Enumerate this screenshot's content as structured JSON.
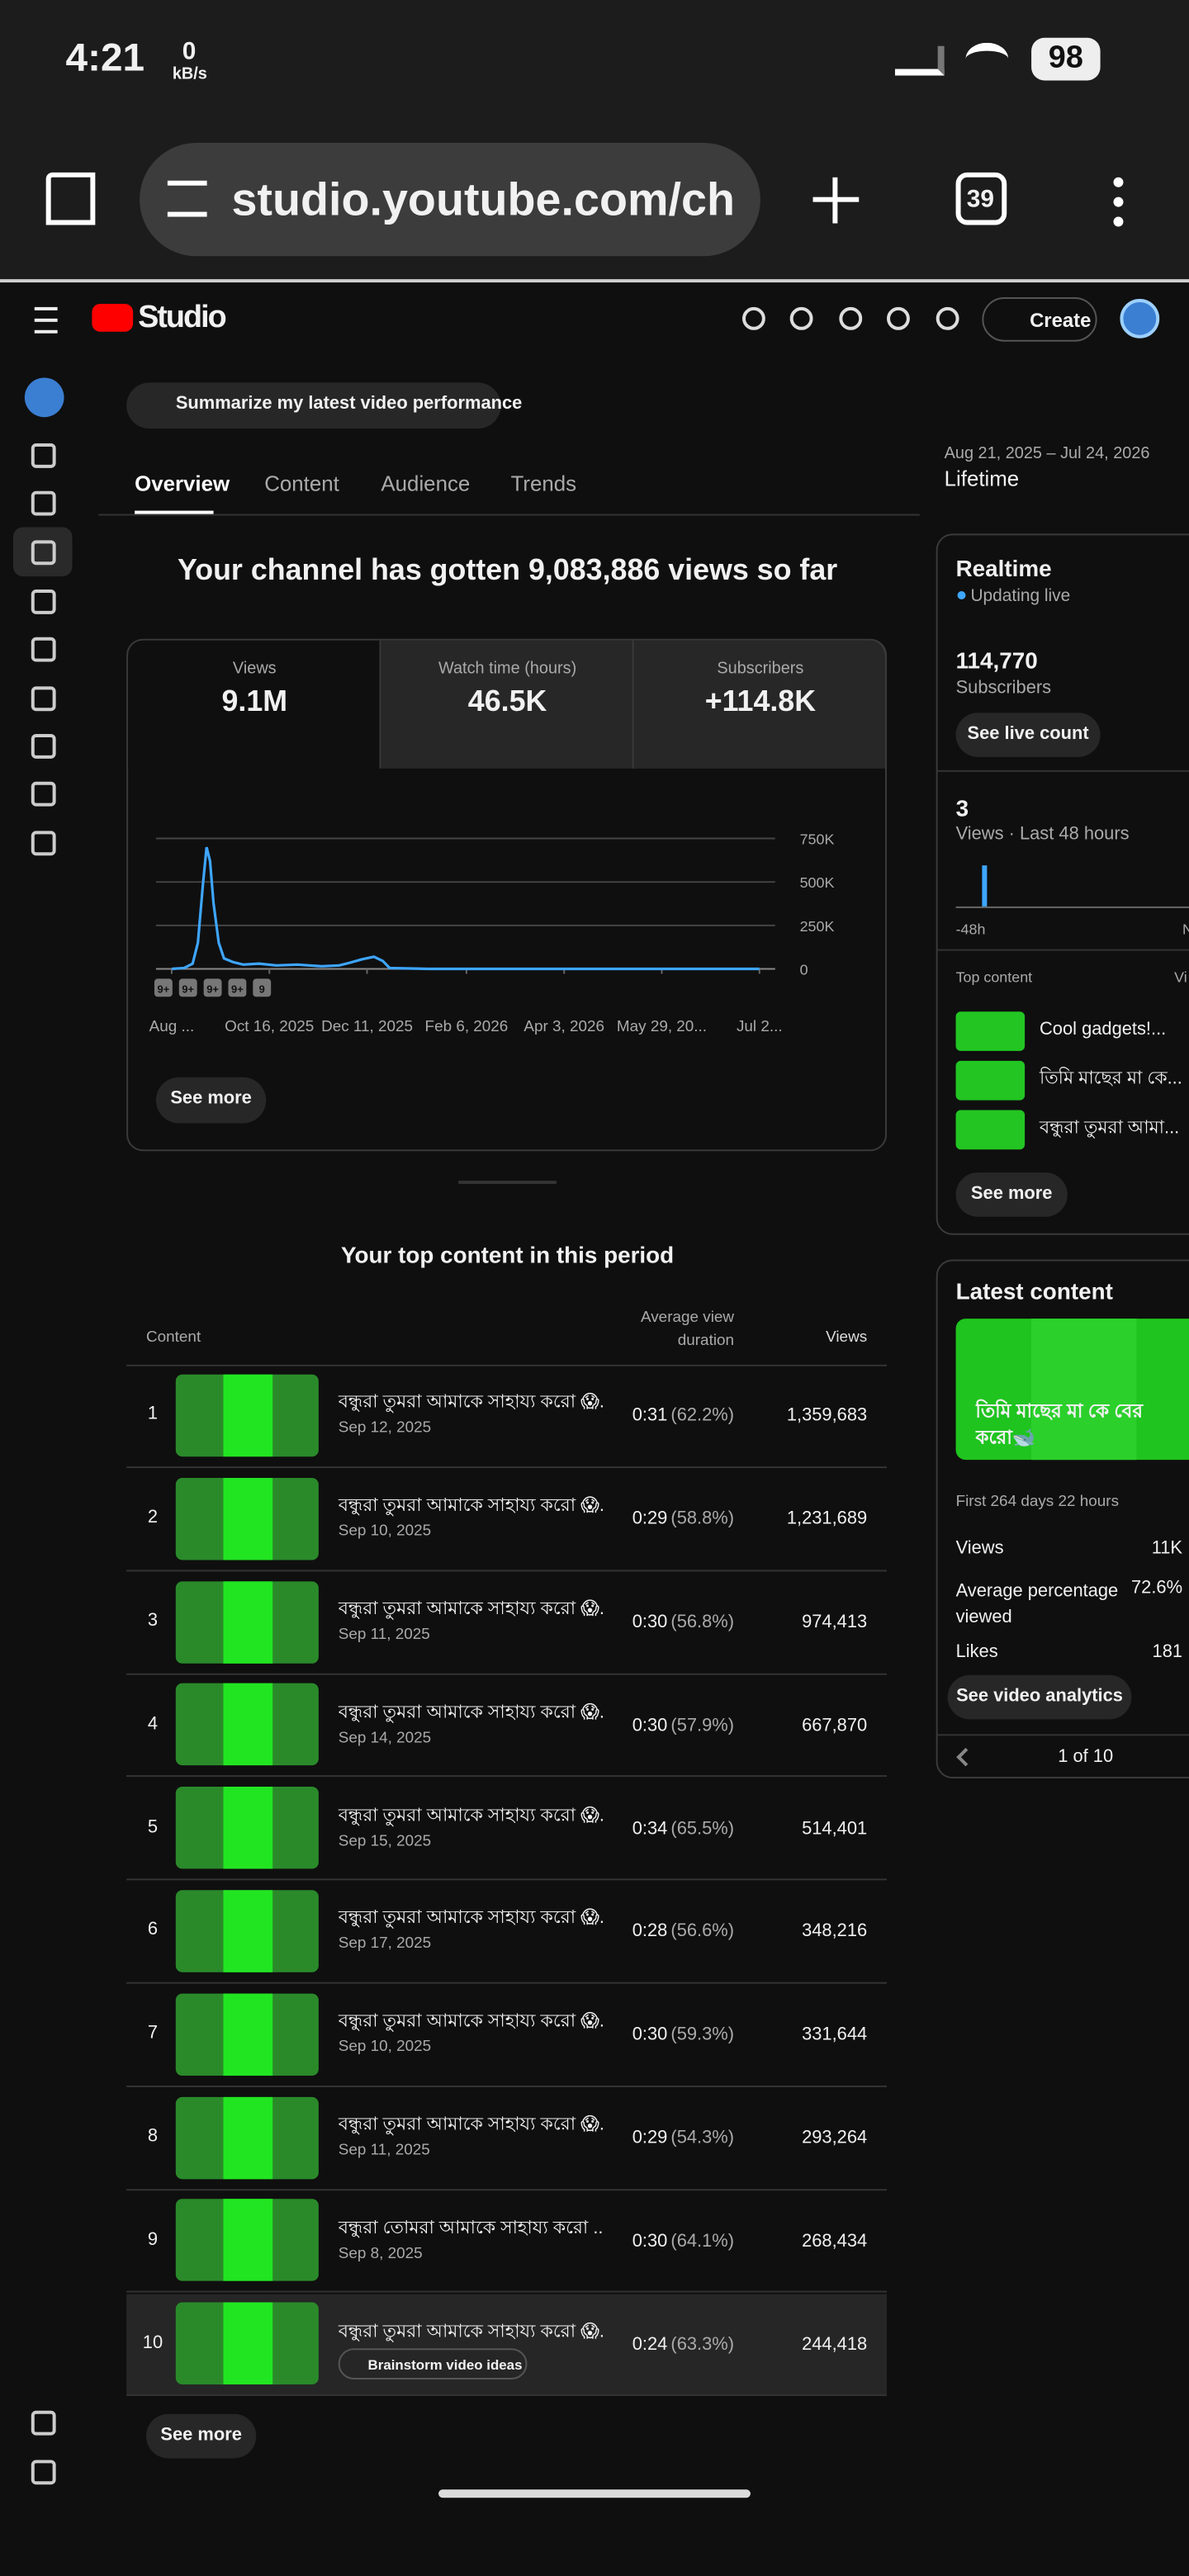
{
  "status": {
    "time": "4:21",
    "net": "0",
    "net_unit": "kB/s",
    "battery": "98"
  },
  "browser": {
    "url": "studio.youtube.com/ch",
    "tab_count": "39"
  },
  "header": {
    "logo": "Studio",
    "create": "Create"
  },
  "prompt": "Summarize my latest video performance",
  "tabs": [
    "Overview",
    "Content",
    "Audience",
    "Trends"
  ],
  "date_range": "Aug 21, 2025 – Jul 24, 2026",
  "period": "Lifetime",
  "headline": "Your channel has gotten 9,083,886 views so far",
  "metrics": [
    {
      "label": "Views",
      "value": "9.1M"
    },
    {
      "label": "Watch time (hours)",
      "value": "46.5K"
    },
    {
      "label": "Subscribers",
      "value": "+114.8K"
    }
  ],
  "chart_data": {
    "type": "line",
    "color": "#3ea6ff",
    "x": [
      "2025-08-21",
      "2025-08-28",
      "2025-09-02",
      "2025-09-05",
      "2025-09-08",
      "2025-09-10",
      "2025-09-12",
      "2025-09-14",
      "2025-09-17",
      "2025-09-20",
      "2025-09-25",
      "2025-10-01",
      "2025-10-10",
      "2025-10-20",
      "2025-11-01",
      "2025-11-15",
      "2025-11-25",
      "2025-12-01",
      "2025-12-08",
      "2025-12-15",
      "2025-12-20",
      "2025-12-24",
      "2026-01-15",
      "2026-03-01",
      "2026-05-01",
      "2026-07-24"
    ],
    "values": [
      0,
      5000,
      30000,
      150000,
      500000,
      700000,
      620000,
      380000,
      150000,
      60000,
      40000,
      25000,
      30000,
      20000,
      25000,
      15000,
      20000,
      35000,
      55000,
      70000,
      45000,
      5000,
      0,
      0,
      0,
      0
    ],
    "xlim": [
      "2025-08-12",
      "2026-08-02"
    ],
    "xticks": [
      {
        "value": "2025-08-21",
        "label": "Aug ..."
      },
      {
        "value": "2025-10-16",
        "label": "Oct 16, 2025"
      },
      {
        "value": "2025-12-11",
        "label": "Dec 11, 2025"
      },
      {
        "value": "2026-02-06",
        "label": "Feb 6, 2026"
      },
      {
        "value": "2026-04-03",
        "label": "Apr 3, 2026"
      },
      {
        "value": "2026-05-29",
        "label": "May 29, 20..."
      },
      {
        "value": "2026-07-24",
        "label": "Jul 2..."
      }
    ],
    "ylim": [
      0,
      850000
    ],
    "yticks": [
      0,
      {
        "value": 250000,
        "label": "250K"
      },
      {
        "value": 500000,
        "label": "500K"
      },
      {
        "value": 750000,
        "label": "750K"
      }
    ],
    "grid": true,
    "annotations": [
      "9+",
      "9+",
      "9+",
      "9+",
      "9"
    ]
  },
  "chart_see_more": "See more",
  "top_content": {
    "title": "Your top content in this period",
    "headers": [
      "Content",
      "Average view duration",
      "Views"
    ],
    "rows": [
      {
        "rank": "1",
        "title": "বন্ধুরা তুমরা আমাকে সাহায্য করো 😱...",
        "date": "Sep 12, 2025",
        "duration": "0:31",
        "percent": "(62.2%)",
        "views": "1,359,683"
      },
      {
        "rank": "2",
        "title": "বন্ধুরা তুমরা আমাকে সাহায্য করো 😱...",
        "date": "Sep 10, 2025",
        "duration": "0:29",
        "percent": "(58.8%)",
        "views": "1,231,689"
      },
      {
        "rank": "3",
        "title": "বন্ধুরা তুমরা আমাকে সাহায্য করো 😱...",
        "date": "Sep 11, 2025",
        "duration": "0:30",
        "percent": "(56.8%)",
        "views": "974,413"
      },
      {
        "rank": "4",
        "title": "বন্ধুরা তুমরা আমাকে সাহায্য করো 😱...",
        "date": "Sep 14, 2025",
        "duration": "0:30",
        "percent": "(57.9%)",
        "views": "667,870"
      },
      {
        "rank": "5",
        "title": "বন্ধুরা তুমরা আমাকে সাহায্য করো 😱...",
        "date": "Sep 15, 2025",
        "duration": "0:34",
        "percent": "(65.5%)",
        "views": "514,401"
      },
      {
        "rank": "6",
        "title": "বন্ধুরা তুমরা আমাকে সাহায্য করো 😱...",
        "date": "Sep 17, 2025",
        "duration": "0:28",
        "percent": "(56.6%)",
        "views": "348,216"
      },
      {
        "rank": "7",
        "title": "বন্ধুরা তুমরা আমাকে সাহায্য করো 😱...",
        "date": "Sep 10, 2025",
        "duration": "0:30",
        "percent": "(59.3%)",
        "views": "331,644"
      },
      {
        "rank": "8",
        "title": "বন্ধুরা তুমরা আমাকে সাহায্য করো 😱...",
        "date": "Sep 11, 2025",
        "duration": "0:29",
        "percent": "(54.3%)",
        "views": "293,264"
      },
      {
        "rank": "9",
        "title": "বন্ধুরা তোমরা আমাকে সাহায্য করো ...",
        "date": "Sep 8, 2025",
        "duration": "0:30",
        "percent": "(64.1%)",
        "views": "268,434"
      },
      {
        "rank": "10",
        "title": "বন্ধুরা তুমরা আমাকে সাহায্য করো 😱...",
        "date": "Brainstorm video ideas",
        "duration": "0:24",
        "percent": "(63.3%)",
        "views": "244,418"
      }
    ],
    "see_more": "See more"
  },
  "realtime": {
    "title": "Realtime",
    "status": "Updating live",
    "subscribers": "114,770",
    "subscribers_label": "Subscribers",
    "live_button": "See live count",
    "views": "3",
    "views_label": "Views · Last 48 hours",
    "axis_start": "-48h",
    "axis_end": "N",
    "top_label": "Top content",
    "top_views_label": "Vi",
    "items": [
      "Cool gadgets!...",
      "তিমি মাছের মা কে...",
      "বন্ধুরা তুমরা আমা..."
    ],
    "see_more": "See more"
  },
  "latest": {
    "title": "Latest content",
    "caption": "তিমি মাছের মা কে বের করো🐋 #viralvideo#viral#shorts...",
    "age": "First 264 days 22 hours",
    "stats": [
      {
        "label": "Views",
        "value": "11K"
      },
      {
        "label": "Average percentage viewed",
        "value": "72.6%"
      },
      {
        "label": "Likes",
        "value": "181"
      }
    ],
    "button": "See video analytics",
    "pager": "1 of 10"
  }
}
